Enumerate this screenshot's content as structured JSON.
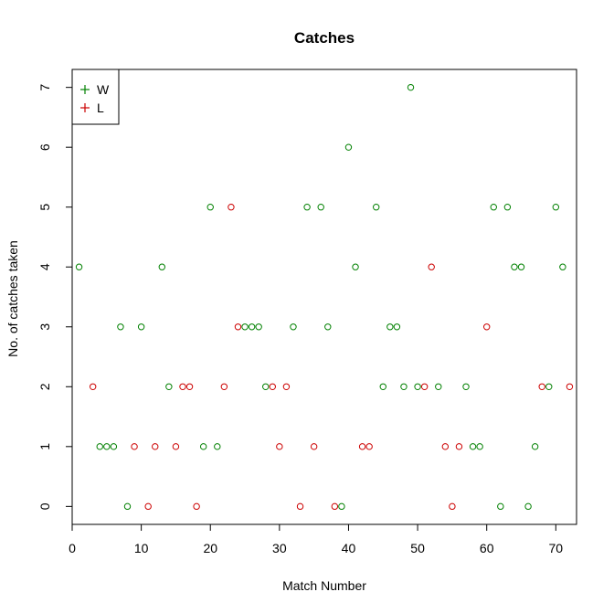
{
  "chart_data": {
    "type": "scatter",
    "title": "Catches",
    "xlabel": "Match Number",
    "ylabel": "No. of catches taken",
    "xlim": [
      0,
      73
    ],
    "ylim": [
      -0.3,
      7.3
    ],
    "x_ticks": [
      0,
      10,
      20,
      30,
      40,
      50,
      60,
      70
    ],
    "y_ticks": [
      0,
      1,
      2,
      3,
      4,
      5,
      6,
      7
    ],
    "grid": false,
    "marker": "open-circle",
    "legend": {
      "position": "top-left",
      "entries": [
        {
          "label": "W",
          "symbol": "+",
          "color": "#008000"
        },
        {
          "label": "L",
          "symbol": "+",
          "color": "#cc0000"
        }
      ]
    },
    "series": [
      {
        "name": "W",
        "color": "#008000",
        "points": [
          [
            1,
            4
          ],
          [
            4,
            1
          ],
          [
            5,
            1
          ],
          [
            6,
            1
          ],
          [
            7,
            3
          ],
          [
            8,
            0
          ],
          [
            10,
            3
          ],
          [
            13,
            4
          ],
          [
            14,
            2
          ],
          [
            19,
            1
          ],
          [
            20,
            5
          ],
          [
            21,
            1
          ],
          [
            25,
            3
          ],
          [
            26,
            3
          ],
          [
            27,
            3
          ],
          [
            28,
            2
          ],
          [
            32,
            3
          ],
          [
            34,
            5
          ],
          [
            36,
            5
          ],
          [
            37,
            3
          ],
          [
            39,
            0
          ],
          [
            40,
            6
          ],
          [
            41,
            4
          ],
          [
            44,
            5
          ],
          [
            45,
            2
          ],
          [
            46,
            3
          ],
          [
            47,
            3
          ],
          [
            48,
            2
          ],
          [
            49,
            7
          ],
          [
            50,
            2
          ],
          [
            53,
            2
          ],
          [
            57,
            2
          ],
          [
            58,
            1
          ],
          [
            59,
            1
          ],
          [
            61,
            5
          ],
          [
            62,
            0
          ],
          [
            63,
            5
          ],
          [
            64,
            4
          ],
          [
            65,
            4
          ],
          [
            66,
            0
          ],
          [
            67,
            1
          ],
          [
            69,
            2
          ],
          [
            70,
            5
          ],
          [
            71,
            4
          ]
        ]
      },
      {
        "name": "L",
        "color": "#cc0000",
        "points": [
          [
            3,
            2
          ],
          [
            9,
            1
          ],
          [
            11,
            0
          ],
          [
            12,
            1
          ],
          [
            15,
            1
          ],
          [
            16,
            2
          ],
          [
            17,
            2
          ],
          [
            18,
            0
          ],
          [
            22,
            2
          ],
          [
            23,
            5
          ],
          [
            24,
            3
          ],
          [
            29,
            2
          ],
          [
            30,
            1
          ],
          [
            31,
            2
          ],
          [
            33,
            0
          ],
          [
            35,
            1
          ],
          [
            38,
            0
          ],
          [
            42,
            1
          ],
          [
            43,
            1
          ],
          [
            51,
            2
          ],
          [
            52,
            4
          ],
          [
            54,
            1
          ],
          [
            55,
            0
          ],
          [
            56,
            1
          ],
          [
            60,
            3
          ],
          [
            68,
            2
          ],
          [
            72,
            2
          ]
        ]
      }
    ]
  }
}
